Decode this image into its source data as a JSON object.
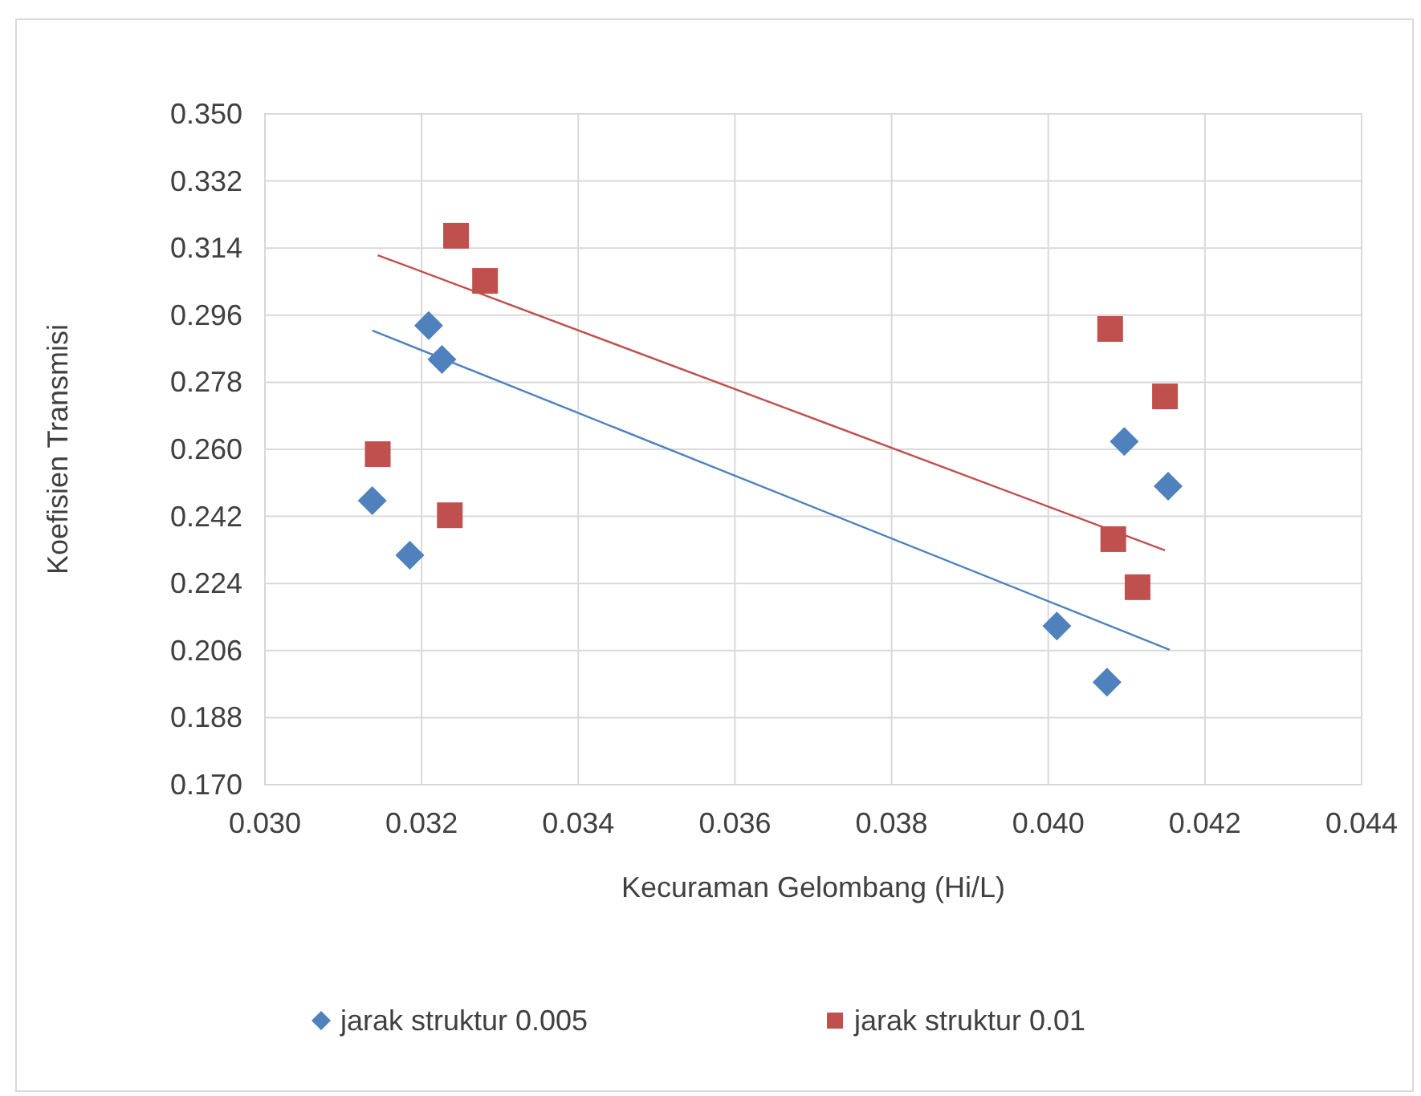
{
  "chart_data": {
    "type": "scatter",
    "xlabel": "Kecuraman Gelombang (Hi/L)",
    "ylabel": "Koefisien Transmisi",
    "xlim": [
      0.03,
      0.044
    ],
    "xticks": [
      {
        "value": 0.03,
        "label": "0.030"
      },
      {
        "value": 0.032,
        "label": "0.032"
      },
      {
        "value": 0.034,
        "label": "0.034"
      },
      {
        "value": 0.036,
        "label": "0.036"
      },
      {
        "value": 0.038,
        "label": "0.038"
      },
      {
        "value": 0.04,
        "label": "0.040"
      },
      {
        "value": 0.042,
        "label": "0.042"
      },
      {
        "value": 0.044,
        "label": "0.044"
      }
    ],
    "ylim": [
      0.17,
      0.35
    ],
    "yticks": [
      {
        "value": 0.17,
        "label": "0.170"
      },
      0.188,
      0.206,
      0.224,
      0.242,
      {
        "value": 0.26,
        "label": "0.260"
      },
      0.278,
      0.296,
      0.314,
      0.332,
      {
        "value": 0.35,
        "label": "0.350"
      }
    ],
    "grid": true,
    "legend": "bottom",
    "series": [
      {
        "name": "jarak struktur 0.005",
        "color": "#4f81bd",
        "marker": "diamond",
        "x": [
          0.03137,
          0.03185,
          0.03209,
          0.03226,
          0.04011,
          0.04075,
          0.04097,
          0.04153
        ],
        "values": [
          0.2462,
          0.2316,
          0.2932,
          0.2841,
          0.2126,
          0.1975,
          0.2621,
          0.2501
        ]
      },
      {
        "name": "jarak struktur 0.01",
        "color": "#c0504d",
        "marker": "square",
        "x": [
          0.03144,
          0.03236,
          0.03244,
          0.03281,
          0.04079,
          0.04083,
          0.04114,
          0.04149
        ],
        "values": [
          0.2587,
          0.2423,
          0.3173,
          0.3052,
          0.2923,
          0.2359,
          0.223,
          0.2742
        ]
      },
      {
        "type": "line",
        "color": "#4f81bd",
        "x": [
          0.03137,
          0.04155
        ],
        "values": [
          0.2919,
          0.2062
        ]
      },
      {
        "type": "line",
        "color": "#c0504d",
        "x": [
          0.03144,
          0.04149
        ],
        "values": [
          0.3121,
          0.2329
        ]
      }
    ]
  }
}
